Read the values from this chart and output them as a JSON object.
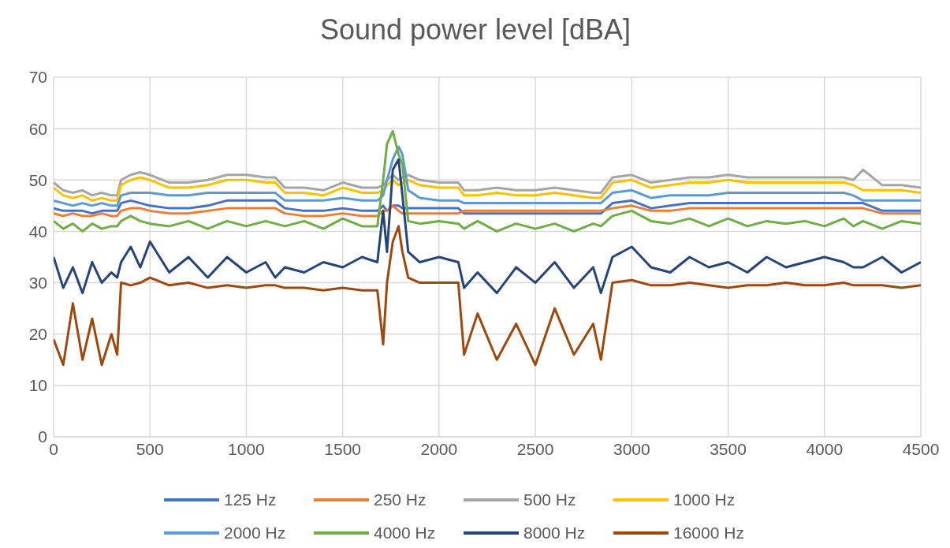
{
  "chart_data": {
    "type": "line",
    "title": "Sound power level [dBA]",
    "x": [
      0,
      50,
      100,
      150,
      200,
      250,
      300,
      330,
      350,
      400,
      450,
      500,
      600,
      700,
      800,
      900,
      1000,
      1100,
      1150,
      1200,
      1300,
      1400,
      1500,
      1600,
      1680,
      1710,
      1730,
      1760,
      1790,
      1810,
      1840,
      1900,
      2000,
      2100,
      2130,
      2200,
      2300,
      2400,
      2500,
      2600,
      2700,
      2800,
      2840,
      2900,
      3000,
      3100,
      3200,
      3300,
      3400,
      3500,
      3600,
      3700,
      3800,
      3900,
      4000,
      4100,
      4150,
      4200,
      4300,
      4400,
      4500
    ],
    "series": [
      {
        "name": "125 Hz",
        "color": "#4472c4",
        "values": [
          44.5,
          44,
          44,
          44,
          43.5,
          44,
          44,
          44,
          45.5,
          46,
          45.5,
          45,
          44.5,
          44.5,
          45,
          46,
          46,
          46,
          46,
          44.5,
          44,
          44,
          44.5,
          44,
          44,
          45,
          44,
          45,
          45,
          44.5,
          44.5,
          44.5,
          44.5,
          44.5,
          43.5,
          43.5,
          43.5,
          43.5,
          43.5,
          43.5,
          43.5,
          43.5,
          43.5,
          45.5,
          46,
          44.5,
          45,
          45.5,
          45.5,
          45.5,
          45.5,
          45.5,
          45.5,
          45.5,
          45.5,
          45.5,
          45.5,
          45.5,
          44,
          44,
          44
        ]
      },
      {
        "name": "250 Hz",
        "color": "#ed7d31",
        "values": [
          43.5,
          43,
          43.5,
          43,
          43,
          43.5,
          43,
          43,
          44,
          44.5,
          44.5,
          44,
          43.5,
          43.5,
          44,
          44.5,
          44.5,
          44.5,
          44.5,
          43.5,
          43,
          43,
          43.5,
          43,
          43,
          44,
          44,
          45,
          44,
          43.5,
          43.5,
          43.5,
          43.5,
          43.5,
          44,
          44,
          44,
          44,
          44,
          44,
          44,
          44,
          44,
          44.5,
          45,
          44,
          44,
          44.5,
          44.5,
          44.5,
          44.5,
          44.5,
          44.5,
          44.5,
          44.5,
          44.5,
          44.5,
          44.5,
          43.5,
          43.5,
          43.5
        ]
      },
      {
        "name": "500 Hz",
        "color": "#a5a5a5",
        "values": [
          49.5,
          48,
          47.5,
          48,
          47,
          47.5,
          47,
          47,
          50,
          51,
          51.5,
          51,
          49.5,
          49.5,
          50,
          51,
          51,
          50.5,
          50.5,
          48.5,
          48.5,
          48,
          49.5,
          48.5,
          48.5,
          49,
          50,
          51,
          50,
          50.5,
          51,
          50,
          49.5,
          49.5,
          48,
          48,
          48.5,
          48,
          48,
          48.5,
          48,
          47.5,
          47.5,
          50.5,
          51,
          49.5,
          50,
          50.5,
          50.5,
          51,
          50.5,
          50.5,
          50.5,
          50.5,
          50.5,
          50.5,
          50,
          52,
          49,
          49,
          48.5
        ]
      },
      {
        "name": "1000 Hz",
        "color": "#ffc000",
        "values": [
          48.5,
          47,
          46.5,
          47,
          46,
          46.5,
          46,
          46,
          49,
          50,
          50.5,
          50,
          48.5,
          48.5,
          49,
          50,
          50,
          49.5,
          49.5,
          47.5,
          47.5,
          47,
          48.5,
          47.5,
          47.5,
          48,
          49,
          50,
          49,
          49.5,
          50,
          49,
          48.5,
          48.5,
          47,
          47,
          47.5,
          47,
          47,
          47.5,
          47,
          46.5,
          46.5,
          49.5,
          50,
          48.5,
          49,
          49.5,
          49.5,
          50,
          49.5,
          49.5,
          49.5,
          49.5,
          49.5,
          49.5,
          49,
          48,
          48,
          48,
          47.5
        ]
      },
      {
        "name": "2000 Hz",
        "color": "#5b9bd5",
        "values": [
          46,
          45.5,
          45,
          45.5,
          45,
          45.5,
          45,
          45,
          47,
          47.5,
          47.5,
          47.5,
          47,
          47,
          47.5,
          47.5,
          47.5,
          47.5,
          47.5,
          46,
          46,
          46,
          46.5,
          46,
          46,
          47,
          50,
          54,
          56.5,
          55,
          48,
          46.5,
          46,
          46,
          45.5,
          45.5,
          45.5,
          45.5,
          45.5,
          45.5,
          45.5,
          45.5,
          45.5,
          47.5,
          48,
          46.5,
          47,
          47,
          47,
          47.5,
          47.5,
          47.5,
          47.5,
          47.5,
          47.5,
          47.5,
          47,
          46,
          46,
          46,
          46
        ]
      },
      {
        "name": "4000 Hz",
        "color": "#70ad47",
        "values": [
          42,
          40.5,
          41.5,
          40,
          41.5,
          40.5,
          41,
          41,
          42,
          43,
          42,
          41.5,
          41,
          42,
          40.5,
          42,
          41,
          42,
          41.5,
          41,
          42,
          40.5,
          42.5,
          41,
          41,
          50,
          57,
          59.5,
          55,
          53,
          42,
          41.5,
          42,
          41.5,
          40.5,
          42,
          40,
          41.5,
          40.5,
          41.5,
          40,
          41.5,
          41,
          43,
          44,
          42,
          41.5,
          42.5,
          41,
          42.5,
          41,
          42,
          41.5,
          42,
          41,
          42.5,
          41,
          42,
          40.5,
          42,
          41.5
        ]
      },
      {
        "name": "8000 Hz",
        "color": "#264478",
        "values": [
          35,
          29,
          33,
          28,
          34,
          30,
          32,
          31,
          34,
          37,
          33,
          38,
          32,
          35,
          31,
          35,
          32,
          34,
          31,
          33,
          32,
          34,
          33,
          35,
          34,
          44,
          36,
          52,
          54,
          47,
          36,
          34,
          35,
          34,
          29,
          32,
          28,
          33,
          30,
          34,
          29,
          33,
          28,
          35,
          37,
          33,
          32,
          35,
          33,
          34,
          32,
          35,
          33,
          34,
          35,
          34,
          33,
          33,
          35,
          32,
          34
        ]
      },
      {
        "name": "16000 Hz",
        "color": "#9e480e",
        "values": [
          19,
          14,
          26,
          15,
          23,
          14,
          20,
          16,
          30,
          29.5,
          30,
          31,
          29.5,
          30,
          29,
          29.5,
          29,
          29.5,
          29.5,
          29,
          29,
          28.5,
          29,
          28.5,
          28.5,
          18,
          30,
          38,
          41,
          36,
          31,
          30,
          30,
          30,
          16,
          24,
          15,
          22,
          14,
          25,
          16,
          22,
          15,
          30,
          30.5,
          29.5,
          29.5,
          30,
          29.5,
          29,
          29.5,
          29.5,
          30,
          29.5,
          29.5,
          30,
          29.5,
          29.5,
          29.5,
          29,
          29.5
        ]
      }
    ],
    "xlim": [
      0,
      4500
    ],
    "xticks": [
      0,
      500,
      1000,
      1500,
      2000,
      2500,
      3000,
      3500,
      4000,
      4500
    ],
    "ylim": [
      0,
      70
    ],
    "yticks": [
      0,
      10,
      20,
      30,
      40,
      50,
      60,
      70
    ],
    "grid": true,
    "legend": "bottom",
    "marker": "none",
    "line_style": "solid"
  }
}
